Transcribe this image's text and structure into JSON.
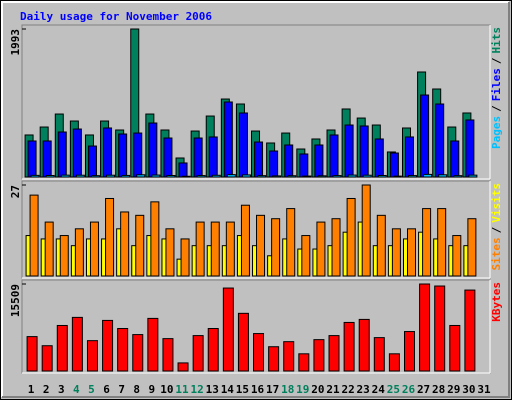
{
  "chart_data": {
    "type": "bar",
    "title": "Daily usage for November 2006",
    "categories": [
      "1",
      "2",
      "3",
      "4",
      "5",
      "6",
      "7",
      "8",
      "9",
      "10",
      "11",
      "12",
      "13",
      "14",
      "15",
      "16",
      "17",
      "18",
      "19",
      "20",
      "21",
      "22",
      "23",
      "24",
      "25",
      "26",
      "27",
      "28",
      "29",
      "30",
      "31"
    ],
    "category_colors": [
      "#000000",
      "#000000",
      "#000000",
      "#00805c",
      "#00805c",
      "#000000",
      "#000000",
      "#000000",
      "#000000",
      "#000000",
      "#00805c",
      "#00805c",
      "#000000",
      "#000000",
      "#000000",
      "#000000",
      "#000000",
      "#00805c",
      "#00805c",
      "#000000",
      "#000000",
      "#000000",
      "#000000",
      "#000000",
      "#00805c",
      "#00805c",
      "#000000",
      "#000000",
      "#000000",
      "#000000",
      "#000000"
    ],
    "legend_separator": "/",
    "panels": [
      {
        "ylim": [
          0,
          1993
        ],
        "yticks": [
          1993
        ],
        "series": [
          {
            "name": "Hits",
            "color": "#00805c",
            "values": [
              566,
              673,
              848,
              754,
              566,
              754,
              633,
              1993,
              848,
              633,
              256,
              619,
              821,
              1050,
              983,
              619,
              458,
              592,
              377,
              512,
              633,
              916,
              794,
              700,
              337,
              660,
              1414,
              1185,
              673,
              862,
              null
            ]
          },
          {
            "name": "Files",
            "color": "#0000ff",
            "values": [
              485,
              485,
              606,
              646,
              417,
              660,
              579,
              592,
              727,
              525,
              189,
              525,
              539,
              1010,
              862,
              471,
              350,
              431,
              310,
              431,
              566,
              700,
              687,
              512,
              323,
              539,
              1104,
              983,
              485,
              768,
              null
            ]
          },
          {
            "name": "Pages",
            "color": "#00c0ff",
            "values": [
              22,
              20,
              25,
              24,
              18,
              24,
              21,
              30,
              26,
              20,
              10,
              19,
              23,
              32,
              28,
              18,
              15,
              17,
              13,
              16,
              19,
              26,
              24,
              20,
              12,
              19,
              35,
              30,
              18,
              25,
              null
            ]
          }
        ]
      },
      {
        "ylim": [
          0,
          27
        ],
        "yticks": [
          27
        ],
        "series": [
          {
            "name": "Visits",
            "color": "#ffff00",
            "values": [
              12,
              11,
              11,
              9,
              11,
              11,
              14,
              9,
              12,
              11,
              5,
              9,
              9,
              9,
              12,
              9,
              6,
              11,
              8,
              8,
              9,
              13,
              16,
              9,
              9,
              11,
              13,
              11,
              9,
              9,
              null
            ]
          },
          {
            "name": "Sites",
            "color": "#ff8000",
            "values": [
              24,
              16,
              12,
              14,
              16,
              23,
              19,
              18,
              22,
              14,
              11,
              16,
              16,
              16,
              21,
              18,
              17,
              20,
              12,
              16,
              17,
              23,
              27,
              18,
              14,
              14,
              20,
              20,
              12,
              17,
              null
            ]
          }
        ]
      },
      {
        "ylim": [
          0,
          15509
        ],
        "yticks": [
          15509
        ],
        "series": [
          {
            "name": "KBytes",
            "color": "#ff0000",
            "values": [
              6132,
              4508,
              8115,
              9558,
              5410,
              9017,
              7574,
              6492,
              9378,
              5771,
              1443,
              6312,
              7574,
              14788,
              10279,
              6673,
              4328,
              5230,
              3066,
              5591,
              6312,
              8656,
              9197,
              5951,
              3066,
              7033,
              15509,
              15149,
              8115,
              14427,
              null
            ]
          }
        ]
      }
    ]
  }
}
